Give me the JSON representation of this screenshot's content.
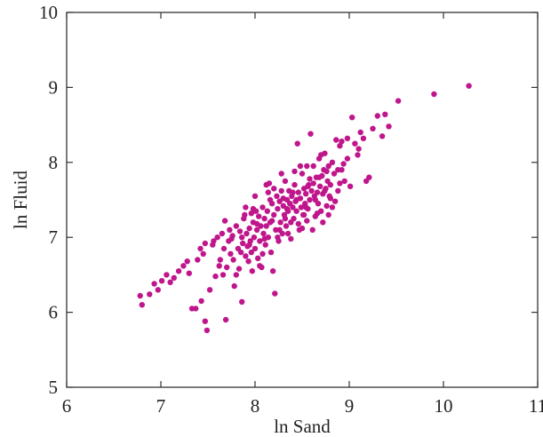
{
  "chart_data": {
    "type": "scatter",
    "title": "",
    "xlabel": "ln Sand",
    "ylabel": "ln Fluid",
    "xlim": [
      6,
      11
    ],
    "ylim": [
      5,
      10
    ],
    "xticks": [
      "6",
      "7",
      "8",
      "9",
      "10",
      "11"
    ],
    "yticks": [
      "5",
      "6",
      "7",
      "8",
      "9",
      "10"
    ],
    "grid": false,
    "color": "#c0168c",
    "series": [
      {
        "points": [
          [
            6.78,
            6.22
          ],
          [
            6.8,
            6.1
          ],
          [
            6.88,
            6.24
          ],
          [
            6.93,
            6.38
          ],
          [
            6.97,
            6.3
          ],
          [
            7.01,
            6.42
          ],
          [
            7.06,
            6.5
          ],
          [
            7.1,
            6.4
          ],
          [
            7.14,
            6.46
          ],
          [
            7.19,
            6.55
          ],
          [
            7.24,
            6.62
          ],
          [
            7.28,
            6.68
          ],
          [
            7.33,
            6.05
          ],
          [
            7.37,
            6.05
          ],
          [
            7.39,
            6.7
          ],
          [
            7.42,
            6.85
          ],
          [
            7.45,
            6.78
          ],
          [
            7.47,
            6.92
          ],
          [
            7.3,
            6.52
          ],
          [
            7.43,
            6.15
          ],
          [
            7.47,
            5.88
          ],
          [
            7.49,
            5.76
          ],
          [
            7.52,
            6.3
          ],
          [
            7.56,
            6.95
          ],
          [
            7.58,
            6.48
          ],
          [
            7.6,
            7.0
          ],
          [
            7.63,
            6.7
          ],
          [
            7.65,
            7.05
          ],
          [
            7.67,
            6.85
          ],
          [
            7.69,
            5.9
          ],
          [
            7.7,
            6.6
          ],
          [
            7.72,
            6.95
          ],
          [
            7.73,
            7.1
          ],
          [
            7.75,
            6.98
          ],
          [
            7.77,
            6.7
          ],
          [
            7.78,
            6.35
          ],
          [
            7.8,
            7.15
          ],
          [
            7.82,
            6.85
          ],
          [
            7.83,
            6.58
          ],
          [
            7.85,
            6.8
          ],
          [
            7.86,
            6.14
          ],
          [
            7.87,
            6.92
          ],
          [
            7.88,
            7.25
          ],
          [
            7.89,
            7.3
          ],
          [
            7.9,
            6.75
          ],
          [
            7.91,
            7.05
          ],
          [
            7.92,
            6.88
          ],
          [
            7.93,
            6.68
          ],
          [
            7.94,
            7.12
          ],
          [
            7.95,
            6.95
          ],
          [
            7.96,
            6.8
          ],
          [
            7.97,
            6.55
          ],
          [
            7.98,
            7.2
          ],
          [
            7.99,
            7.0
          ],
          [
            8.0,
            6.85
          ],
          [
            8.01,
            7.35
          ],
          [
            8.02,
            7.1
          ],
          [
            8.03,
            6.72
          ],
          [
            8.04,
            7.28
          ],
          [
            8.05,
            6.95
          ],
          [
            8.06,
            7.15
          ],
          [
            8.07,
            6.6
          ],
          [
            8.08,
            7.4
          ],
          [
            8.09,
            7.05
          ],
          [
            8.1,
            7.25
          ],
          [
            8.11,
            6.9
          ],
          [
            8.12,
            7.7
          ],
          [
            8.13,
            7.35
          ],
          [
            8.14,
            7.0
          ],
          [
            8.15,
            7.72
          ],
          [
            8.16,
            7.2
          ],
          [
            8.17,
            6.8
          ],
          [
            8.18,
            7.45
          ],
          [
            8.19,
            6.55
          ],
          [
            8.2,
            7.3
          ],
          [
            8.21,
            6.25
          ],
          [
            8.22,
            7.1
          ],
          [
            8.23,
            7.55
          ],
          [
            8.24,
            7.38
          ],
          [
            8.25,
            6.95
          ],
          [
            8.26,
            7.48
          ],
          [
            8.27,
            7.2
          ],
          [
            8.28,
            7.62
          ],
          [
            8.29,
            7.05
          ],
          [
            8.3,
            7.42
          ],
          [
            8.31,
            7.3
          ],
          [
            8.32,
            7.75
          ],
          [
            8.33,
            7.15
          ],
          [
            8.34,
            7.5
          ],
          [
            8.35,
            7.35
          ],
          [
            8.36,
            7.62
          ],
          [
            8.37,
            7.45
          ],
          [
            8.38,
            6.98
          ],
          [
            8.39,
            7.55
          ],
          [
            8.4,
            7.4
          ],
          [
            8.41,
            7.25
          ],
          [
            8.42,
            7.7
          ],
          [
            8.43,
            7.48
          ],
          [
            8.44,
            7.35
          ],
          [
            8.45,
            8.25
          ],
          [
            8.46,
            7.6
          ],
          [
            8.47,
            7.1
          ],
          [
            8.48,
            7.52
          ],
          [
            8.49,
            7.4
          ],
          [
            8.5,
            7.85
          ],
          [
            8.51,
            7.3
          ],
          [
            8.52,
            7.65
          ],
          [
            8.53,
            7.45
          ],
          [
            8.54,
            7.58
          ],
          [
            8.55,
            7.95
          ],
          [
            8.56,
            7.38
          ],
          [
            8.57,
            7.7
          ],
          [
            8.58,
            7.5
          ],
          [
            8.59,
            8.38
          ],
          [
            8.6,
            7.62
          ],
          [
            8.61,
            7.1
          ],
          [
            8.62,
            7.72
          ],
          [
            8.63,
            7.55
          ],
          [
            8.64,
            7.28
          ],
          [
            8.65,
            7.8
          ],
          [
            8.66,
            7.6
          ],
          [
            8.67,
            7.45
          ],
          [
            8.68,
            8.05
          ],
          [
            8.69,
            7.68
          ],
          [
            8.7,
            7.35
          ],
          [
            8.71,
            7.82
          ],
          [
            8.72,
            7.58
          ],
          [
            8.73,
            7.9
          ],
          [
            8.74,
            8.12
          ],
          [
            8.75,
            7.65
          ],
          [
            8.76,
            7.42
          ],
          [
            8.77,
            7.75
          ],
          [
            8.78,
            7.95
          ],
          [
            8.79,
            7.55
          ],
          [
            8.8,
            7.7
          ],
          [
            8.82,
            8.0
          ],
          [
            8.84,
            7.85
          ],
          [
            8.86,
            8.3
          ],
          [
            8.88,
            7.62
          ],
          [
            8.9,
            8.22
          ],
          [
            8.92,
            7.9
          ],
          [
            8.95,
            7.75
          ],
          [
            8.98,
            8.05
          ],
          [
            9.01,
            7.68
          ],
          [
            9.03,
            8.6
          ],
          [
            9.06,
            8.25
          ],
          [
            9.09,
            8.1
          ],
          [
            9.12,
            8.4
          ],
          [
            9.15,
            8.32
          ],
          [
            9.18,
            7.75
          ],
          [
            9.21,
            7.8
          ],
          [
            9.25,
            8.45
          ],
          [
            9.3,
            8.62
          ],
          [
            9.35,
            8.35
          ],
          [
            9.38,
            8.64
          ],
          [
            9.42,
            8.48
          ],
          [
            9.52,
            8.82
          ],
          [
            9.9,
            8.91
          ],
          [
            10.27,
            9.02
          ],
          [
            7.55,
            6.9
          ],
          [
            7.62,
            6.62
          ],
          [
            7.68,
            7.22
          ],
          [
            7.8,
            6.5
          ],
          [
            7.9,
            7.4
          ],
          [
            8.0,
            7.55
          ],
          [
            8.05,
            6.62
          ],
          [
            8.12,
            7.15
          ],
          [
            8.2,
            7.65
          ],
          [
            8.28,
            7.85
          ],
          [
            8.35,
            7.05
          ],
          [
            8.42,
            7.88
          ],
          [
            8.48,
            7.95
          ],
          [
            8.55,
            7.22
          ],
          [
            8.62,
            7.95
          ],
          [
            8.7,
            8.1
          ],
          [
            8.78,
            7.3
          ],
          [
            8.85,
            7.48
          ],
          [
            8.92,
            8.28
          ],
          [
            8.98,
            8.32
          ],
          [
            7.84,
            7.08
          ],
          [
            7.96,
            7.32
          ],
          [
            8.08,
            6.78
          ],
          [
            8.16,
            7.5
          ],
          [
            8.24,
            7.0
          ],
          [
            8.32,
            7.25
          ],
          [
            8.4,
            7.6
          ],
          [
            8.46,
            7.18
          ],
          [
            8.52,
            7.3
          ],
          [
            8.58,
            7.78
          ],
          [
            8.64,
            7.5
          ],
          [
            8.72,
            7.2
          ],
          [
            8.76,
            7.88
          ],
          [
            8.82,
            7.4
          ],
          [
            8.88,
            7.9
          ],
          [
            7.74,
            6.78
          ],
          [
            7.86,
            7.0
          ],
          [
            7.94,
            6.9
          ],
          [
            8.02,
            7.18
          ],
          [
            8.1,
            6.98
          ],
          [
            8.18,
            7.22
          ],
          [
            8.26,
            7.1
          ],
          [
            8.34,
            7.38
          ],
          [
            8.44,
            7.5
          ],
          [
            8.5,
            7.12
          ],
          [
            8.56,
            7.68
          ],
          [
            8.66,
            7.32
          ],
          [
            8.74,
            7.62
          ],
          [
            8.8,
            7.52
          ],
          [
            8.94,
            7.98
          ],
          [
            7.66,
            6.5
          ],
          [
            7.76,
            7.02
          ],
          [
            7.98,
            7.38
          ],
          [
            8.14,
            7.6
          ],
          [
            8.3,
            7.52
          ],
          [
            8.38,
            7.2
          ],
          [
            8.54,
            7.4
          ],
          [
            8.68,
            7.8
          ],
          [
            8.9,
            7.72
          ],
          [
            9.1,
            8.18
          ]
        ]
      }
    ]
  }
}
